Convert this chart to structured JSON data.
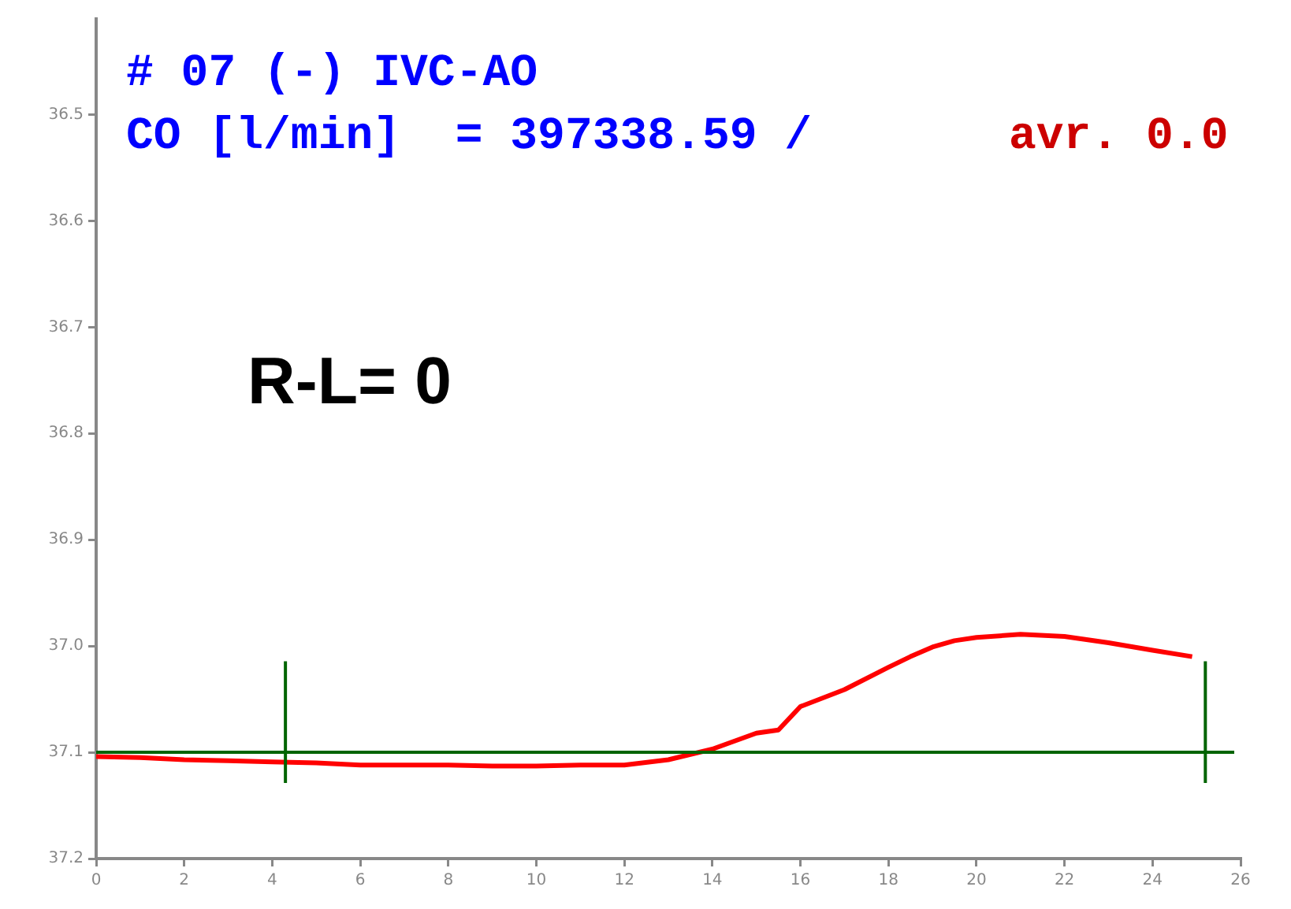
{
  "chart_data": {
    "type": "line",
    "title": "# 07 (-) IVC-AO",
    "subtitle": "CO [l/min]  = 397338.59 /",
    "annotations": [
      "avr. 0.0",
      "R-L= 0"
    ],
    "x": [
      0,
      1,
      2,
      3,
      4,
      5,
      6,
      7,
      8,
      9,
      10,
      11,
      12,
      13,
      14,
      15,
      15.5,
      16,
      17,
      18,
      18.5,
      19,
      19.5,
      20,
      21,
      22,
      23,
      24,
      24.9
    ],
    "series": [
      {
        "color": "#ff0000",
        "values": [
          37.104,
          37.105,
          37.107,
          37.108,
          37.109,
          37.11,
          37.112,
          37.112,
          37.112,
          37.113,
          37.113,
          37.112,
          37.112,
          37.107,
          37.097,
          37.082,
          37.079,
          37.057,
          37.041,
          37.02,
          37.01,
          37.001,
          36.995,
          36.992,
          36.989,
          36.991,
          36.997,
          37.004,
          37.01
        ]
      }
    ],
    "xlim": [
      0,
      26
    ],
    "xticks": [
      0,
      2,
      4,
      6,
      8,
      10,
      12,
      14,
      16,
      18,
      20,
      22,
      24,
      26
    ],
    "ylim": [
      37.2,
      36.41
    ],
    "yticks": [
      36.5,
      36.6,
      36.7,
      36.8,
      36.9,
      {
        "value": 37,
        "label": "37.0"
      },
      37.1,
      37.2
    ],
    "ref_lines": [
      {
        "axis": "y",
        "value": 37.1,
        "color": "#006400"
      },
      {
        "axis": "x",
        "value": 4.3,
        "color": "#006400"
      },
      {
        "axis": "x",
        "value": 25.2,
        "color": "#006400"
      }
    ],
    "grid": false,
    "legend": false,
    "marker": "none",
    "line_style": "solid"
  }
}
